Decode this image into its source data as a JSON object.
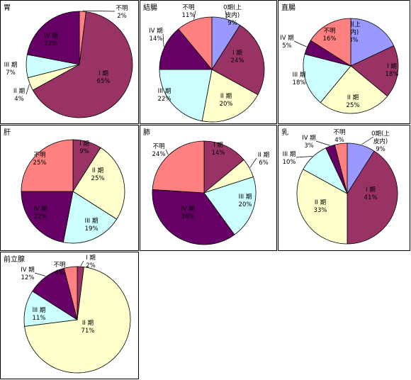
{
  "colors": {
    "0期(上皮内)": "#9999ff",
    "I期": "#993366",
    "II期": "#ffffcc",
    "III期": "#ccffff",
    "IV期": "#660066",
    "不明": "#ff8080"
  },
  "chart_data": [
    {
      "type": "pie",
      "title": "胃",
      "slices": [
        {
          "name": "不明",
          "value": 2,
          "label": "不明",
          "pct": "2%"
        },
        {
          "name": "I期",
          "value": 65,
          "label": "I 期",
          "pct": "65%"
        },
        {
          "name": "II期",
          "value": 4,
          "label": "II 期",
          "pct": "4%"
        },
        {
          "name": "III期",
          "value": 7,
          "label": "III 期",
          "pct": "7%"
        },
        {
          "name": "IV期",
          "value": 22,
          "label": "IV 期",
          "pct": "22%"
        }
      ]
    },
    {
      "type": "pie",
      "title": "結腸",
      "slices": [
        {
          "name": "0期(上皮内)",
          "value": 9,
          "label": "0期(上皮内)",
          "pct": "9%"
        },
        {
          "name": "I期",
          "value": 24,
          "label": "I 期",
          "pct": "24%"
        },
        {
          "name": "II期",
          "value": 20,
          "label": "II 期",
          "pct": "20%"
        },
        {
          "name": "III期",
          "value": 22,
          "label": "III 期",
          "pct": "22%"
        },
        {
          "name": "IV期",
          "value": 14,
          "label": "IV 期",
          "pct": "14%"
        },
        {
          "name": "不明",
          "value": 11,
          "label": "不明",
          "pct": "11%"
        }
      ]
    },
    {
      "type": "pie",
      "title": "直腸",
      "slices": [
        {
          "name": "0期(上皮内)",
          "value": 18,
          "label": "0期(上皮内)",
          "pct": "18%"
        },
        {
          "name": "I期",
          "value": 18,
          "label": "I 期",
          "pct": "18%"
        },
        {
          "name": "II期",
          "value": 25,
          "label": "II 期",
          "pct": "25%"
        },
        {
          "name": "III期",
          "value": 18,
          "label": "III 期",
          "pct": "18%"
        },
        {
          "name": "IV期",
          "value": 5,
          "label": "IV 期",
          "pct": "5%"
        },
        {
          "name": "不明",
          "value": 16,
          "label": "不明",
          "pct": "16%"
        }
      ]
    },
    {
      "type": "pie",
      "title": "肝",
      "slices": [
        {
          "name": "I期",
          "value": 9,
          "label": "I 期",
          "pct": "9%"
        },
        {
          "name": "II期",
          "value": 25,
          "label": "II 期",
          "pct": "25%"
        },
        {
          "name": "III期",
          "value": 19,
          "label": "III 期",
          "pct": "19%"
        },
        {
          "name": "IV期",
          "value": 22,
          "label": "IV 期",
          "pct": "22%"
        },
        {
          "name": "不明",
          "value": 25,
          "label": "不明",
          "pct": "25%"
        }
      ]
    },
    {
      "type": "pie",
      "title": "肺",
      "slices": [
        {
          "name": "I期",
          "value": 14,
          "label": "I 期",
          "pct": "14%"
        },
        {
          "name": "II期",
          "value": 6,
          "label": "II 期",
          "pct": "6%"
        },
        {
          "name": "III期",
          "value": 20,
          "label": "III 期",
          "pct": "20%"
        },
        {
          "name": "IV期",
          "value": 36,
          "label": "IV 期",
          "pct": "36%"
        },
        {
          "name": "不明",
          "value": 24,
          "label": "不明",
          "pct": "24%"
        }
      ]
    },
    {
      "type": "pie",
      "title": "乳",
      "slices": [
        {
          "name": "0期(上皮内)",
          "value": 9,
          "label": "0期(上皮内)",
          "pct": "9%"
        },
        {
          "name": "I期",
          "value": 41,
          "label": "I 期",
          "pct": "41%"
        },
        {
          "name": "II期",
          "value": 33,
          "label": "II 期",
          "pct": "33%"
        },
        {
          "name": "III期",
          "value": 10,
          "label": "III 期",
          "pct": "10%"
        },
        {
          "name": "IV期",
          "value": 3,
          "label": "IV 期",
          "pct": "3%"
        },
        {
          "name": "不明",
          "value": 4,
          "label": "不明",
          "pct": "4%"
        }
      ]
    },
    {
      "type": "pie",
      "title": "前立腺",
      "slices": [
        {
          "name": "I期",
          "value": 2,
          "label": "I 期",
          "pct": "2%"
        },
        {
          "name": "II期",
          "value": 71,
          "label": "II 期",
          "pct": "71%"
        },
        {
          "name": "III期",
          "value": 11,
          "label": "III 期",
          "pct": "11%"
        },
        {
          "name": "IV期",
          "value": 12,
          "label": "IV 期",
          "pct": "12%"
        },
        {
          "name": "不明",
          "value": 4,
          "label": "不明",
          "pct": "4%"
        }
      ]
    }
  ]
}
